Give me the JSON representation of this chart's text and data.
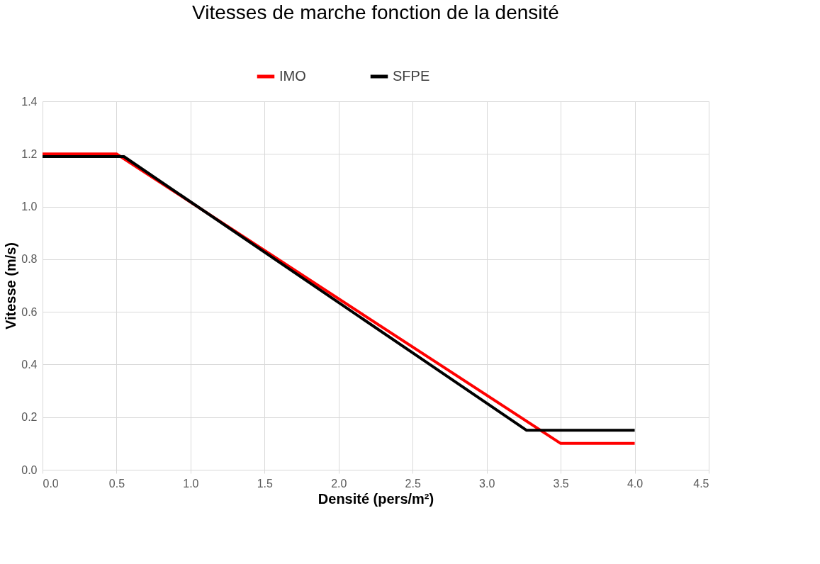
{
  "chart_data": {
    "type": "line",
    "title": "Vitesses de marche fonction de la densité",
    "xlabel": "Densité (pers/m²)",
    "ylabel": "Vitesse (m/s)",
    "series": [
      {
        "name": "IMO",
        "color": "#ff0000",
        "x": [
          0,
          0.5,
          3.5,
          4.0
        ],
        "values": [
          1.2,
          1.2,
          0.1,
          0.1
        ]
      },
      {
        "name": "SFPE",
        "color": "#000000",
        "x": [
          0,
          0.55,
          3.27,
          4.0
        ],
        "values": [
          1.19,
          1.19,
          0.15,
          0.15
        ]
      }
    ],
    "xlim": [
      0,
      4.5
    ],
    "ylim": [
      0,
      1.4
    ],
    "xticks": [
      {
        "value": 0,
        "label": "0.0"
      },
      {
        "value": 0.5,
        "label": "0.5"
      },
      {
        "value": 1,
        "label": "1.0"
      },
      {
        "value": 1.5,
        "label": "1.5"
      },
      {
        "value": 2,
        "label": "2.0"
      },
      {
        "value": 2.5,
        "label": "2.5"
      },
      {
        "value": 3,
        "label": "3.0"
      },
      {
        "value": 3.5,
        "label": "3.5"
      },
      {
        "value": 4,
        "label": "4.0"
      },
      {
        "value": 4.5,
        "label": "4.5"
      }
    ],
    "yticks": [
      {
        "value": 0,
        "label": "0.0"
      },
      {
        "value": 0.2,
        "label": "0.2"
      },
      {
        "value": 0.4,
        "label": "0.4"
      },
      {
        "value": 0.6,
        "label": "0.6"
      },
      {
        "value": 0.8,
        "label": "0.8"
      },
      {
        "value": 1,
        "label": "1.0"
      },
      {
        "value": 1.2,
        "label": "1.2"
      },
      {
        "value": 1.4,
        "label": "1.4"
      }
    ],
    "grid": true,
    "legend": "top",
    "marker": "none",
    "line_style": "solid"
  }
}
